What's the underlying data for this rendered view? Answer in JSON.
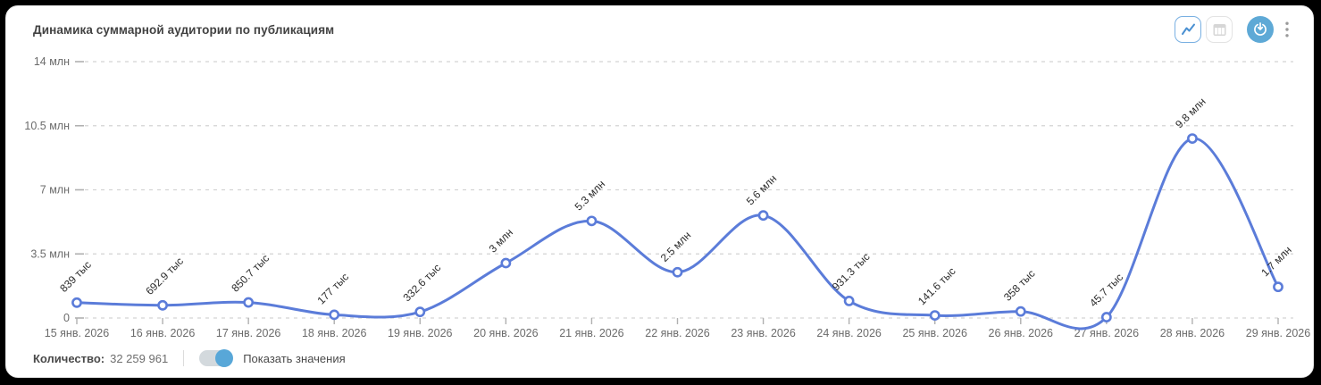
{
  "header": {
    "title": "Динамика суммарной аудитории по публикациям",
    "controls": {
      "active_view": "line",
      "line_view_icon": "line-chart-icon",
      "table_view_icon": "table-icon",
      "export_icon": "power-export-icon",
      "menu_icon": "kebab-menu-icon"
    }
  },
  "footer": {
    "count_label": "Количество:",
    "count_value": "32 259 961",
    "toggle_label": "Показать значения",
    "toggle_on": true
  },
  "colors": {
    "line": "#5b7cd9",
    "marker_fill": "#ffffff",
    "accent": "#5ea9d6",
    "grid": "#d4d4d4",
    "tick": "#b0b0b0",
    "axis_text": "#6b6b6b",
    "point_label_text": "#2b2b2b"
  },
  "chart_data": {
    "type": "line",
    "title": "Динамика суммарной аудитории по публикациям",
    "x": [
      "15 янв. 2026",
      "16 янв. 2026",
      "17 янв. 2026",
      "18 янв. 2026",
      "19 янв. 2026",
      "20 янв. 2026",
      "21 янв. 2026",
      "22 янв. 2026",
      "23 янв. 2026",
      "24 янв. 2026",
      "25 янв. 2026",
      "26 янв. 2026",
      "27 янв. 2026",
      "28 янв. 2026",
      "29 янв. 2026"
    ],
    "series": [
      {
        "values": [
          839000,
          692900,
          850700,
          177000,
          332600,
          3000000,
          5300000,
          2500000,
          5600000,
          931300,
          141600,
          358000,
          45700,
          9800000,
          1700000
        ],
        "point_labels": [
          "839 тыс",
          "692.9 тыс",
          "850.7 тыс",
          "177 тыс",
          "332.6 тыс",
          "3 млн",
          "5.3 млн",
          "2.5 млн",
          "5.6 млн",
          "931.3 тыс",
          "141.6 тыс",
          "358 тыс",
          "45.7 тыс",
          "9.8 млн",
          "1.7 млн"
        ]
      }
    ],
    "ylim": [
      0,
      14000000
    ],
    "yticks": [
      {
        "value": 0,
        "label": "0"
      },
      {
        "value": 3500000,
        "label": "3.5 млн"
      },
      {
        "value": 7000000,
        "label": "7 млн"
      },
      {
        "value": 10500000,
        "label": "10.5 млн"
      },
      {
        "value": 14000000,
        "label": "14 млн"
      }
    ],
    "grid": "horizontal-dashed",
    "legend": "none",
    "marker": "open-circle",
    "point_label_rotation": -45,
    "total": "32 259 961"
  }
}
